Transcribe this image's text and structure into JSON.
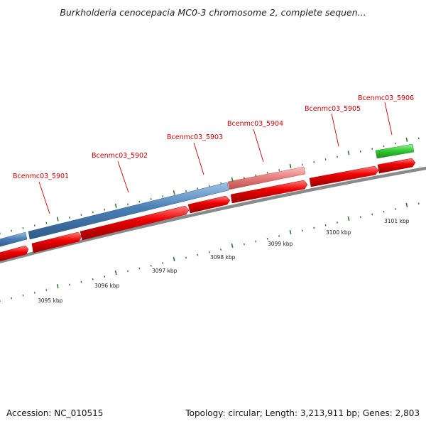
{
  "title": "Burkholderia cenocepacia MC0-3 chromosome 2, complete sequen...",
  "footer": {
    "accession": "Accession: NC_010515",
    "summary": "Topology: circular; Length: 3,213,911 bp; Genes: 2,803"
  },
  "colors": {
    "backbone": "#8a8a8a",
    "forward_gene": "#4a7fb5",
    "forward_gene_alt": "#e88080",
    "forward_gene_green": "#33cc33",
    "reverse_gene": "#e00000",
    "label": "#cc0000",
    "tick": "#2a7a2a"
  },
  "genes": [
    {
      "label": "Bcenmc03_5901"
    },
    {
      "label": "Bcenmc03_5902"
    },
    {
      "label": "Bcenmc03_5903"
    },
    {
      "label": "Bcenmc03_5904"
    },
    {
      "label": "Bcenmc03_5905"
    },
    {
      "label": "Bcenmc03_5906"
    }
  ],
  "scale_labels": [
    "3095 kbp",
    "3096 kbp",
    "3097 kbp",
    "3098 kbp",
    "3099 kbp",
    "3100 kbp",
    "3101 kbp"
  ]
}
